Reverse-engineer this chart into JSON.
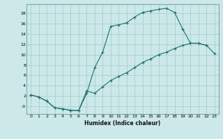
{
  "title": "",
  "xlabel": "Humidex (Indice chaleur)",
  "bg_color": "#cce8e8",
  "line_color": "#1a7070",
  "grid_color": "#aacece",
  "xlim": [
    -0.5,
    23.5
  ],
  "ylim": [
    -1.5,
    19.8
  ],
  "xticks": [
    0,
    1,
    2,
    3,
    4,
    5,
    6,
    7,
    8,
    9,
    10,
    11,
    12,
    13,
    14,
    15,
    16,
    17,
    18,
    19,
    20,
    21,
    22,
    23
  ],
  "yticks": [
    0,
    2,
    4,
    6,
    8,
    10,
    12,
    14,
    16,
    18
  ],
  "ytick_labels": [
    "-0",
    "2",
    "4",
    "6",
    "8",
    "10",
    "12",
    "14",
    "16",
    "18"
  ],
  "upper_x": [
    0,
    1,
    2,
    3,
    4,
    5,
    6,
    7,
    8,
    9,
    10,
    11,
    12,
    13,
    14,
    15,
    16,
    17,
    18,
    19,
    20,
    21,
    22
  ],
  "upper_y": [
    2.2,
    1.8,
    1.0,
    -0.3,
    -0.5,
    -0.8,
    -0.8,
    2.5,
    7.5,
    10.5,
    15.5,
    15.8,
    16.2,
    17.3,
    18.2,
    18.5,
    18.8,
    19.0,
    18.2,
    15.0,
    12.2,
    12.2,
    11.8
  ],
  "lower_x": [
    0,
    1,
    2,
    3,
    4,
    5,
    6,
    7,
    8,
    9,
    10,
    11,
    12,
    13,
    14,
    15,
    16,
    17,
    18,
    19,
    20,
    21,
    22,
    23
  ],
  "lower_y": [
    2.2,
    1.8,
    1.0,
    -0.3,
    -0.5,
    -0.8,
    -0.8,
    3.0,
    2.5,
    3.8,
    5.0,
    5.8,
    6.5,
    7.5,
    8.5,
    9.2,
    10.0,
    10.5,
    11.2,
    11.8,
    12.2,
    12.2,
    11.8,
    10.2
  ]
}
